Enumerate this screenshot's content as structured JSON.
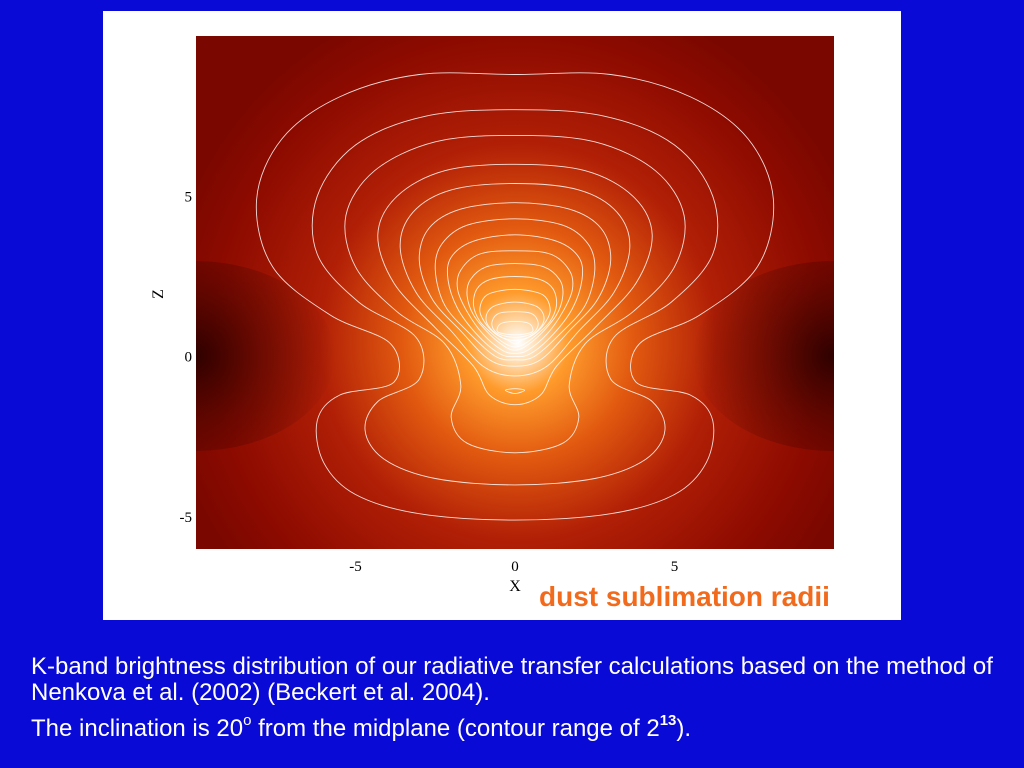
{
  "slide": {
    "annotation": "dust sublimation radii",
    "caption": {
      "line1": "K-band brightness distribution of our radiative transfer calculations based on the method of Nenkova et al. (2002) (Beckert et al. 2004).",
      "line2_pre": "The inclination is 20",
      "line2_sup1": "o",
      "line2_mid": " from the midplane (contour range of 2",
      "line2_sup2": "13",
      "line2_post": ")."
    }
  },
  "chart_data": {
    "type": "heatmap",
    "title": "",
    "xlabel": "X",
    "ylabel": "Z",
    "xlim": [
      -10,
      10
    ],
    "ylim": [
      -6,
      10
    ],
    "xticks": [
      {
        "value": -5,
        "label": "-5"
      },
      {
        "value": 0,
        "label": "0"
      },
      {
        "value": 5,
        "label": "5"
      }
    ],
    "yticks": [
      {
        "value": -5,
        "label": "-5"
      },
      {
        "value": 0,
        "label": "0"
      },
      {
        "value": 5,
        "label": "5"
      }
    ],
    "colormap": [
      "#2a0000",
      "#8a0a00",
      "#c22a08",
      "#ef6a10",
      "#ff9a2a",
      "#ffe6c8",
      "#ffffff"
    ],
    "peak": {
      "x": 0,
      "z": 0.4
    },
    "contour_color": "#ffffff",
    "contours": [
      [
        [
          0,
          8.8
        ],
        [
          3,
          8.8
        ],
        [
          5.5,
          8.1
        ],
        [
          7.3,
          6.8
        ],
        [
          8.1,
          4.9
        ],
        [
          7.6,
          2.8
        ],
        [
          5.8,
          1.3
        ],
        [
          3.9,
          0.4
        ],
        [
          3.8,
          -0.8
        ],
        [
          5.5,
          -1.2
        ],
        [
          6.2,
          -2.0
        ],
        [
          6.0,
          -3.3
        ],
        [
          5.0,
          -4.3
        ],
        [
          3.0,
          -4.9
        ],
        [
          0,
          -5.1
        ],
        [
          -3.0,
          -4.9
        ],
        [
          -5.0,
          -4.3
        ],
        [
          -6.0,
          -3.3
        ],
        [
          -6.2,
          -2.0
        ],
        [
          -5.5,
          -1.2
        ],
        [
          -3.8,
          -0.8
        ],
        [
          -3.9,
          0.4
        ],
        [
          -5.8,
          1.3
        ],
        [
          -7.6,
          2.8
        ],
        [
          -8.1,
          4.9
        ],
        [
          -7.3,
          6.8
        ],
        [
          -5.5,
          8.1
        ],
        [
          -3,
          8.8
        ]
      ],
      [
        [
          0,
          7.7
        ],
        [
          2.8,
          7.5
        ],
        [
          5.0,
          6.6
        ],
        [
          6.2,
          5.0
        ],
        [
          6.2,
          3.2
        ],
        [
          4.9,
          1.7
        ],
        [
          3.1,
          0.6
        ],
        [
          3.0,
          -0.7
        ],
        [
          4.3,
          -1.4
        ],
        [
          4.7,
          -2.3
        ],
        [
          4.1,
          -3.2
        ],
        [
          2.5,
          -3.8
        ],
        [
          0,
          -4.0
        ],
        [
          -2.5,
          -3.8
        ],
        [
          -4.1,
          -3.2
        ],
        [
          -4.7,
          -2.3
        ],
        [
          -4.3,
          -1.4
        ],
        [
          -3.0,
          -0.7
        ],
        [
          -3.1,
          0.6
        ],
        [
          -4.9,
          1.7
        ],
        [
          -6.2,
          3.2
        ],
        [
          -6.2,
          5.0
        ],
        [
          -5.0,
          6.6
        ],
        [
          -2.8,
          7.5
        ]
      ],
      [
        [
          0,
          6.9
        ],
        [
          2.5,
          6.7
        ],
        [
          4.4,
          5.8
        ],
        [
          5.3,
          4.4
        ],
        [
          5.0,
          2.8
        ],
        [
          3.7,
          1.4
        ],
        [
          2.2,
          0.4
        ],
        [
          1.7,
          -0.9
        ],
        [
          2.0,
          -1.9
        ],
        [
          1.5,
          -2.7
        ],
        [
          0,
          -3.0
        ],
        [
          -1.5,
          -2.7
        ],
        [
          -2.0,
          -1.9
        ],
        [
          -1.7,
          -0.9
        ],
        [
          -2.2,
          0.4
        ],
        [
          -3.7,
          1.4
        ],
        [
          -5.0,
          2.8
        ],
        [
          -5.3,
          4.4
        ],
        [
          -4.4,
          5.8
        ],
        [
          -2.5,
          6.7
        ]
      ],
      [
        [
          0,
          6.0
        ],
        [
          2.2,
          5.8
        ],
        [
          3.7,
          5.0
        ],
        [
          4.3,
          3.8
        ],
        [
          3.8,
          2.3
        ],
        [
          2.5,
          0.9
        ],
        [
          1.3,
          -0.3
        ],
        [
          0.8,
          -1.2
        ],
        [
          0,
          -1.5
        ],
        [
          -0.8,
          -1.2
        ],
        [
          -1.3,
          -0.3
        ],
        [
          -2.5,
          0.9
        ],
        [
          -3.8,
          2.3
        ],
        [
          -4.3,
          3.8
        ],
        [
          -3.7,
          5.0
        ],
        [
          -2.2,
          5.8
        ]
      ],
      [
        [
          0,
          5.4
        ],
        [
          2.0,
          5.2
        ],
        [
          3.2,
          4.5
        ],
        [
          3.6,
          3.4
        ],
        [
          3.1,
          2.0
        ],
        [
          2.0,
          0.8
        ],
        [
          1.0,
          -0.3
        ],
        [
          0,
          -0.6
        ],
        [
          -1.0,
          -0.3
        ],
        [
          -2.0,
          0.8
        ],
        [
          -3.1,
          2.0
        ],
        [
          -3.6,
          3.4
        ],
        [
          -3.2,
          4.5
        ],
        [
          -2.0,
          5.2
        ]
      ],
      [
        [
          0,
          4.8
        ],
        [
          1.7,
          4.6
        ],
        [
          2.7,
          4.0
        ],
        [
          3.0,
          3.0
        ],
        [
          2.6,
          1.8
        ],
        [
          1.7,
          0.8
        ],
        [
          0.8,
          -0.1
        ],
        [
          0,
          -0.3
        ],
        [
          -0.8,
          -0.1
        ],
        [
          -1.7,
          0.8
        ],
        [
          -2.6,
          1.8
        ],
        [
          -3.0,
          3.0
        ],
        [
          -2.7,
          4.0
        ],
        [
          -1.7,
          4.6
        ]
      ],
      [
        [
          0,
          4.3
        ],
        [
          1.5,
          4.1
        ],
        [
          2.3,
          3.5
        ],
        [
          2.5,
          2.7
        ],
        [
          2.2,
          1.6
        ],
        [
          1.4,
          0.7
        ],
        [
          0.6,
          0.0
        ],
        [
          0,
          -0.1
        ],
        [
          -0.6,
          0.0
        ],
        [
          -1.4,
          0.7
        ],
        [
          -2.2,
          1.6
        ],
        [
          -2.5,
          2.7
        ],
        [
          -2.3,
          3.5
        ],
        [
          -1.5,
          4.1
        ]
      ],
      [
        [
          0,
          3.8
        ],
        [
          1.3,
          3.6
        ],
        [
          2.0,
          3.1
        ],
        [
          2.1,
          2.4
        ],
        [
          1.8,
          1.5
        ],
        [
          1.2,
          0.7
        ],
        [
          0.5,
          0.1
        ],
        [
          0,
          0.0
        ],
        [
          -0.5,
          0.1
        ],
        [
          -1.2,
          0.7
        ],
        [
          -1.8,
          1.5
        ],
        [
          -2.1,
          2.4
        ],
        [
          -2.0,
          3.1
        ],
        [
          -1.3,
          3.6
        ]
      ],
      [
        [
          0,
          3.3
        ],
        [
          1.1,
          3.2
        ],
        [
          1.7,
          2.7
        ],
        [
          1.8,
          2.1
        ],
        [
          1.5,
          1.4
        ],
        [
          1.0,
          0.7
        ],
        [
          0.4,
          0.2
        ],
        [
          0,
          0.1
        ],
        [
          -0.4,
          0.2
        ],
        [
          -1.0,
          0.7
        ],
        [
          -1.5,
          1.4
        ],
        [
          -1.8,
          2.1
        ],
        [
          -1.7,
          2.7
        ],
        [
          -1.1,
          3.2
        ]
      ],
      [
        [
          0,
          2.9
        ],
        [
          0.9,
          2.8
        ],
        [
          1.4,
          2.4
        ],
        [
          1.5,
          1.9
        ],
        [
          1.3,
          1.3
        ],
        [
          0.8,
          0.7
        ],
        [
          0.3,
          0.3
        ],
        [
          0,
          0.2
        ],
        [
          -0.3,
          0.3
        ],
        [
          -0.8,
          0.7
        ],
        [
          -1.3,
          1.3
        ],
        [
          -1.5,
          1.9
        ],
        [
          -1.4,
          2.4
        ],
        [
          -0.9,
          2.8
        ]
      ],
      [
        [
          0,
          2.5
        ],
        [
          0.8,
          2.4
        ],
        [
          1.2,
          2.1
        ],
        [
          1.3,
          1.6
        ],
        [
          1.1,
          1.1
        ],
        [
          0.7,
          0.7
        ],
        [
          0.3,
          0.4
        ],
        [
          0,
          0.3
        ],
        [
          -0.3,
          0.4
        ],
        [
          -0.7,
          0.7
        ],
        [
          -1.1,
          1.1
        ],
        [
          -1.3,
          1.6
        ],
        [
          -1.2,
          2.1
        ],
        [
          -0.8,
          2.4
        ]
      ],
      [
        [
          0,
          2.1
        ],
        [
          0.7,
          2.0
        ],
        [
          1.0,
          1.8
        ],
        [
          1.1,
          1.4
        ],
        [
          0.9,
          1.0
        ],
        [
          0.6,
          0.7
        ],
        [
          0.2,
          0.5
        ],
        [
          0,
          0.4
        ],
        [
          -0.2,
          0.5
        ],
        [
          -0.6,
          0.7
        ],
        [
          -0.9,
          1.0
        ],
        [
          -1.1,
          1.4
        ],
        [
          -1.0,
          1.8
        ],
        [
          -0.7,
          2.0
        ]
      ],
      [
        [
          0,
          1.7
        ],
        [
          0.6,
          1.6
        ],
        [
          0.85,
          1.4
        ],
        [
          0.9,
          1.1
        ],
        [
          0.7,
          0.8
        ],
        [
          0.4,
          0.6
        ],
        [
          0,
          0.5
        ],
        [
          -0.4,
          0.6
        ],
        [
          -0.7,
          0.8
        ],
        [
          -0.9,
          1.1
        ],
        [
          -0.85,
          1.4
        ],
        [
          -0.6,
          1.6
        ]
      ],
      [
        [
          0,
          1.4
        ],
        [
          0.5,
          1.35
        ],
        [
          0.7,
          1.15
        ],
        [
          0.7,
          0.9
        ],
        [
          0.5,
          0.7
        ],
        [
          0,
          0.6
        ],
        [
          -0.5,
          0.7
        ],
        [
          -0.7,
          0.9
        ],
        [
          -0.7,
          1.15
        ],
        [
          -0.5,
          1.35
        ]
      ],
      [
        [
          0,
          1.1
        ],
        [
          0.4,
          1.05
        ],
        [
          0.55,
          0.9
        ],
        [
          0.5,
          0.75
        ],
        [
          0,
          0.68
        ],
        [
          -0.5,
          0.75
        ],
        [
          -0.55,
          0.9
        ],
        [
          -0.4,
          1.05
        ]
      ],
      [
        [
          -0.3,
          -1.05
        ],
        [
          0,
          -1.0
        ],
        [
          0.3,
          -1.05
        ],
        [
          0,
          -1.15
        ]
      ]
    ],
    "grid": false,
    "legend": "none"
  }
}
